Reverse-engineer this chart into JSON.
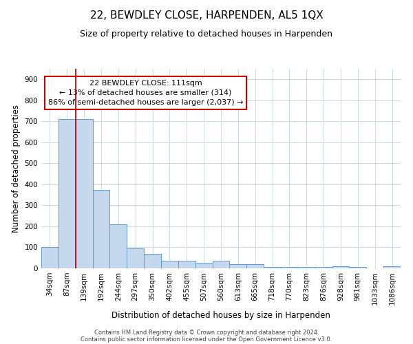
{
  "title": "22, BEWDLEY CLOSE, HARPENDEN, AL5 1QX",
  "subtitle": "Size of property relative to detached houses in Harpenden",
  "xlabel": "Distribution of detached houses by size in Harpenden",
  "ylabel": "Number of detached properties",
  "categories": [
    "34sqm",
    "87sqm",
    "139sqm",
    "192sqm",
    "244sqm",
    "297sqm",
    "350sqm",
    "402sqm",
    "455sqm",
    "507sqm",
    "560sqm",
    "613sqm",
    "665sqm",
    "718sqm",
    "770sqm",
    "823sqm",
    "876sqm",
    "928sqm",
    "981sqm",
    "1033sqm",
    "1086sqm"
  ],
  "bar_heights": [
    100,
    710,
    710,
    375,
    210,
    95,
    70,
    35,
    35,
    27,
    35,
    20,
    20,
    5,
    7,
    5,
    5,
    10,
    5,
    0,
    10
  ],
  "bar_color": "#c5d8ed",
  "bar_edge_color": "#5b9bd5",
  "ylim": [
    0,
    950
  ],
  "yticks": [
    0,
    100,
    200,
    300,
    400,
    500,
    600,
    700,
    800,
    900
  ],
  "property_line_color": "#cc0000",
  "annotation_title": "22 BEWDLEY CLOSE: 111sqm",
  "annotation_line1": "← 13% of detached houses are smaller (314)",
  "annotation_line2": "86% of semi-detached houses are larger (2,037) →",
  "footer1": "Contains HM Land Registry data © Crown copyright and database right 2024.",
  "footer2": "Contains public sector information licensed under the Open Government Licence v3.0.",
  "background_color": "#ffffff",
  "grid_color": "#c8d8e8",
  "title_fontsize": 11,
  "subtitle_fontsize": 9,
  "axis_label_fontsize": 8.5,
  "tick_fontsize": 7.5,
  "footer_fontsize": 6.0
}
